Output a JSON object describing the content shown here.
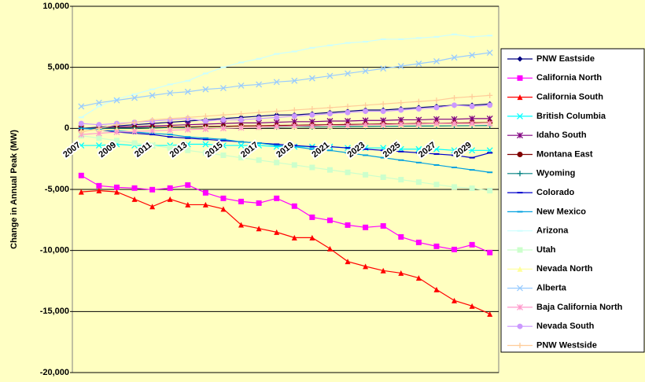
{
  "chart_data": {
    "type": "line",
    "y_label": "Change in Annual Peak (MW)",
    "categories": [
      "2007",
      null,
      "2009",
      null,
      "2011",
      null,
      "2013",
      null,
      "2015",
      null,
      "2017",
      null,
      "2019",
      null,
      "2021",
      null,
      "2023",
      null,
      "2025",
      null,
      "2027",
      null,
      "2029",
      null
    ],
    "ylim": [
      -20000,
      10000
    ],
    "yticks": [
      {
        "value": -20000,
        "label": "-20,000"
      },
      {
        "value": -15000,
        "label": "-15,000"
      },
      {
        "value": -10000,
        "label": "-10,000"
      },
      {
        "value": -5000,
        "label": "-5,000"
      },
      0,
      {
        "value": 5000,
        "label": "5,000"
      },
      {
        "value": 10000,
        "label": "10,000"
      }
    ],
    "grid": true,
    "legend": "right",
    "series": [
      {
        "name": "PNW Eastside",
        "color": "#000080",
        "marker": "diamond",
        "values": [
          0,
          100,
          200,
          300,
          400,
          500,
          600,
          700,
          800,
          900,
          1000,
          1100,
          1100,
          1200,
          1300,
          1400,
          1500,
          1500,
          1600,
          1700,
          1800,
          1900,
          1900,
          2000
        ]
      },
      {
        "name": "California North",
        "color": "#ff00ff",
        "marker": "square",
        "values": [
          -3860,
          -4700,
          -4830,
          -4890,
          -5020,
          -4890,
          -4640,
          -5280,
          -5730,
          -5990,
          -6120,
          -5730,
          -6370,
          -7280,
          -7530,
          -7920,
          -8110,
          -7990,
          -8890,
          -9340,
          -9660,
          -9920,
          -9530,
          -10170
        ]
      },
      {
        "name": "California South",
        "color": "#ff0000",
        "marker": "triangle",
        "values": [
          -5200,
          -5100,
          -5200,
          -5800,
          -6400,
          -5800,
          -6250,
          -6250,
          -6600,
          -7900,
          -8200,
          -8500,
          -8950,
          -8950,
          -9850,
          -10900,
          -11300,
          -11650,
          -11850,
          -12250,
          -13200,
          -14100,
          -14550,
          -15200
        ]
      },
      {
        "name": "British Columbia",
        "color": "#00ffff",
        "marker": "x",
        "values": [
          -1400,
          -1400,
          -1300,
          -1400,
          -1400,
          -1400,
          -1300,
          -1300,
          -1400,
          -1400,
          -1400,
          -1500,
          -1500,
          -1500,
          -1500,
          -1600,
          -1600,
          -1600,
          -1700,
          -1700,
          -1700,
          -1800,
          -1800,
          -1800
        ]
      },
      {
        "name": "Idaho South",
        "color": "#800080",
        "marker": "star",
        "values": [
          0,
          50,
          100,
          150,
          200,
          250,
          300,
          350,
          400,
          450,
          450,
          500,
          550,
          550,
          600,
          600,
          650,
          650,
          700,
          700,
          750,
          750,
          800,
          800
        ]
      },
      {
        "name": "Montana East",
        "color": "#800000",
        "marker": "circle",
        "values": [
          0,
          20,
          40,
          60,
          80,
          100,
          120,
          150,
          170,
          200,
          220,
          240,
          260,
          280,
          300,
          320,
          340,
          360,
          380,
          400,
          420,
          440,
          460,
          480
        ]
      },
      {
        "name": "Wyoming",
        "color": "#008080",
        "marker": "plus",
        "values": [
          0,
          10,
          20,
          30,
          40,
          50,
          60,
          70,
          80,
          90,
          100,
          110,
          120,
          130,
          140,
          150,
          160,
          170,
          180,
          190,
          200,
          210,
          220,
          230
        ]
      },
      {
        "name": "Colorado",
        "color": "#0000cc",
        "marker": "dash",
        "values": [
          0,
          -100,
          -300,
          -400,
          -500,
          -700,
          -800,
          -900,
          -1000,
          -1100,
          -1200,
          -1300,
          -1400,
          -1500,
          -1500,
          -1600,
          -1700,
          -1800,
          -1900,
          -2000,
          -2100,
          -2200,
          -2400,
          -2000
        ]
      },
      {
        "name": "New Mexico",
        "color": "#00a0e0",
        "marker": "dash",
        "values": [
          0,
          -100,
          -200,
          -300,
          -400,
          -500,
          -700,
          -800,
          -900,
          -1100,
          -1200,
          -1400,
          -1500,
          -1700,
          -1800,
          -2000,
          -2200,
          -2400,
          -2600,
          -2800,
          -3000,
          -3200,
          -3400,
          -3600
        ]
      },
      {
        "name": "Arizona",
        "color": "#ccffff",
        "marker": "dash",
        "values": [
          900,
          1800,
          2400,
          2800,
          3200,
          3600,
          3900,
          4500,
          5000,
          5400,
          5700,
          6100,
          6300,
          6600,
          6800,
          7000,
          7100,
          7300,
          7300,
          7400,
          7500,
          7700,
          7500,
          7600
        ]
      },
      {
        "name": "Utah",
        "color": "#ccffcc",
        "marker": "square",
        "values": [
          -600,
          -800,
          -1000,
          -1200,
          -1400,
          -1600,
          -1800,
          -2000,
          -2200,
          -2400,
          -2600,
          -2800,
          -3000,
          -3200,
          -3400,
          -3600,
          -3800,
          -4000,
          -4200,
          -4400,
          -4600,
          -4800,
          -4900,
          -5100
        ]
      },
      {
        "name": "Nevada North",
        "color": "#ffff99",
        "marker": "triangle",
        "values": [
          -200,
          -150,
          -100,
          -100,
          -50,
          0,
          0,
          50,
          50,
          100,
          100,
          150,
          150,
          200,
          200,
          250,
          250,
          300,
          300,
          350,
          350,
          400,
          400,
          450
        ]
      },
      {
        "name": "Alberta",
        "color": "#99ccff",
        "marker": "x",
        "values": [
          1800,
          2100,
          2300,
          2500,
          2700,
          2900,
          3000,
          3200,
          3300,
          3500,
          3600,
          3800,
          3900,
          4100,
          4300,
          4500,
          4700,
          4900,
          5100,
          5300,
          5500,
          5800,
          6000,
          6200
        ]
      },
      {
        "name": "Baja California North",
        "color": "#ff99cc",
        "marker": "star",
        "values": [
          -500,
          -400,
          -300,
          -250,
          -200,
          -150,
          -100,
          -50,
          0,
          50,
          100,
          150,
          200,
          200,
          250,
          250,
          300,
          300,
          350,
          350,
          400,
          400,
          400,
          400
        ]
      },
      {
        "name": "Nevada South",
        "color": "#cc99ff",
        "marker": "circle",
        "values": [
          400,
          300,
          400,
          500,
          600,
          700,
          800,
          600,
          700,
          700,
          800,
          900,
          1000,
          1100,
          1200,
          1300,
          1400,
          1400,
          1500,
          1600,
          1700,
          1900,
          1800,
          1900
        ]
      },
      {
        "name": "PNW Westside",
        "color": "#ffcc99",
        "marker": "plus",
        "values": [
          -300,
          0,
          300,
          500,
          700,
          800,
          900,
          1000,
          1100,
          1200,
          1300,
          1400,
          1500,
          1600,
          1700,
          1800,
          1900,
          2000,
          2100,
          2200,
          2300,
          2500,
          2600,
          2700
        ]
      }
    ]
  }
}
